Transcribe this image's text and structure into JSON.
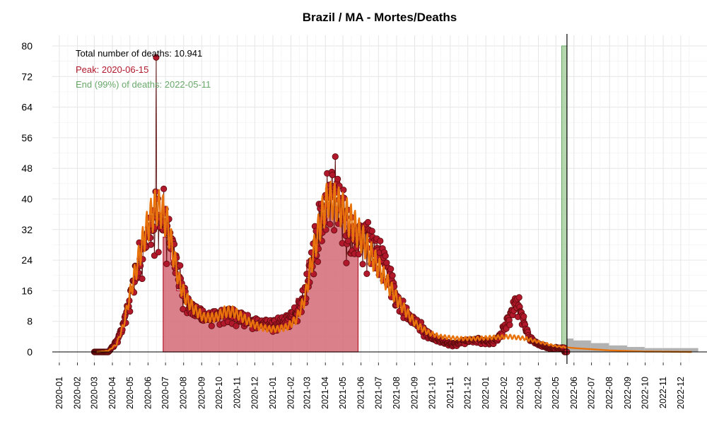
{
  "chart_data": {
    "type": "line",
    "title": "Brazil / MA - Mortes/Deaths",
    "annotations": {
      "total": "Total number of deaths: 10.941",
      "peak": "Peak: 2020-06-15",
      "end": "End (99%) of deaths: 2022-05-11"
    },
    "colors": {
      "points": "#b2182b",
      "points_stroke": "#5a0b0b",
      "area": "#d36a77",
      "smooth": "#e8730c",
      "peak_text": "#b2182b",
      "end_text": "#6aa86a",
      "end_band": "#9ccb94",
      "forecast": "#aaaaaa"
    },
    "y_ticks": [
      0,
      8,
      16,
      24,
      32,
      40,
      48,
      56,
      64,
      72,
      80
    ],
    "ylim": [
      0,
      80
    ],
    "x_ticks": [
      "2020-01",
      "2020-02",
      "2020-03",
      "2020-04",
      "2020-05",
      "2020-06",
      "2020-07",
      "2020-08",
      "2020-09",
      "2020-10",
      "2020-11",
      "2020-12",
      "2021-01",
      "2021-02",
      "2021-03",
      "2021-04",
      "2021-05",
      "2021-06",
      "2021-07",
      "2021-08",
      "2021-09",
      "2021-10",
      "2021-11",
      "2021-12",
      "2022-01",
      "2022-02",
      "2022-03",
      "2022-04",
      "2022-05",
      "2022-06",
      "2022-07",
      "2022-08",
      "2022-09",
      "2022-10",
      "2022-11",
      "2022-12"
    ],
    "xlim": [
      "2019-12-20",
      "2023-01-15"
    ],
    "observed_end": "2022-05-20",
    "end_band": [
      "2022-05-11",
      "2022-05-20"
    ],
    "peak": {
      "date": "2020-06-15",
      "value": 77
    },
    "smooth_trend": [
      [
        "2020-03-05",
        0
      ],
      [
        "2020-03-25",
        0.3
      ],
      [
        "2020-04-08",
        2
      ],
      [
        "2020-04-20",
        7
      ],
      [
        "2020-05-01",
        15
      ],
      [
        "2020-05-12",
        22
      ],
      [
        "2020-05-25",
        30
      ],
      [
        "2020-06-05",
        35
      ],
      [
        "2020-06-15",
        38
      ],
      [
        "2020-06-25",
        37
      ],
      [
        "2020-07-05",
        33
      ],
      [
        "2020-07-15",
        25
      ],
      [
        "2020-07-25",
        18
      ],
      [
        "2020-08-05",
        14
      ],
      [
        "2020-08-20",
        11
      ],
      [
        "2020-09-05",
        9
      ],
      [
        "2020-09-25",
        9
      ],
      [
        "2020-10-10",
        10.5
      ],
      [
        "2020-10-25",
        10.5
      ],
      [
        "2020-11-10",
        9
      ],
      [
        "2020-11-25",
        7.5
      ],
      [
        "2020-12-10",
        6.5
      ],
      [
        "2020-12-25",
        6
      ],
      [
        "2021-01-10",
        6
      ],
      [
        "2021-01-25",
        6.5
      ],
      [
        "2021-02-10",
        8.5
      ],
      [
        "2021-02-25",
        14
      ],
      [
        "2021-03-10",
        25
      ],
      [
        "2021-03-25",
        35
      ],
      [
        "2021-04-05",
        40
      ],
      [
        "2021-04-20",
        39
      ],
      [
        "2021-05-05",
        36
      ],
      [
        "2021-05-20",
        33
      ],
      [
        "2021-06-05",
        29
      ],
      [
        "2021-06-20",
        25
      ],
      [
        "2021-07-05",
        21
      ],
      [
        "2021-07-20",
        17
      ],
      [
        "2021-08-05",
        13
      ],
      [
        "2021-08-20",
        10
      ],
      [
        "2021-09-05",
        7
      ],
      [
        "2021-09-25",
        5
      ],
      [
        "2021-10-15",
        4
      ],
      [
        "2021-11-15",
        3.5
      ],
      [
        "2021-12-15",
        3.5
      ],
      [
        "2022-01-15",
        3.8
      ],
      [
        "2022-02-10",
        4
      ],
      [
        "2022-03-10",
        3.5
      ],
      [
        "2022-04-05",
        2.5
      ],
      [
        "2022-05-01",
        1.5
      ],
      [
        "2022-06-01",
        1
      ],
      [
        "2022-08-01",
        0.4
      ],
      [
        "2022-10-01",
        0.1
      ],
      [
        "2022-12-20",
        0
      ]
    ],
    "observed_trend": [
      [
        "2020-03-01",
        0
      ],
      [
        "2020-03-25",
        0
      ],
      [
        "2020-04-10",
        3
      ],
      [
        "2020-04-25",
        10
      ],
      [
        "2020-05-05",
        18
      ],
      [
        "2020-05-18",
        25
      ],
      [
        "2020-05-30",
        30
      ],
      [
        "2020-06-10",
        34
      ],
      [
        "2020-06-20",
        35
      ],
      [
        "2020-07-01",
        34
      ],
      [
        "2020-07-10",
        30
      ],
      [
        "2020-07-20",
        22
      ],
      [
        "2020-07-30",
        16
      ],
      [
        "2020-08-10",
        12
      ],
      [
        "2020-08-25",
        10
      ],
      [
        "2020-09-10",
        9
      ],
      [
        "2020-10-01",
        9.5
      ],
      [
        "2020-10-20",
        10
      ],
      [
        "2020-11-05",
        9
      ],
      [
        "2020-11-25",
        8
      ],
      [
        "2020-12-15",
        7.5
      ],
      [
        "2021-01-05",
        7
      ],
      [
        "2021-01-25",
        8
      ],
      [
        "2021-02-10",
        10
      ],
      [
        "2021-02-25",
        15
      ],
      [
        "2021-03-10",
        24
      ],
      [
        "2021-03-22",
        33
      ],
      [
        "2021-04-05",
        40
      ],
      [
        "2021-04-15",
        43
      ],
      [
        "2021-04-25",
        40
      ],
      [
        "2021-05-05",
        33
      ],
      [
        "2021-05-18",
        28
      ],
      [
        "2021-06-01",
        30
      ],
      [
        "2021-06-15",
        29
      ],
      [
        "2021-07-01",
        25
      ],
      [
        "2021-07-15",
        22
      ],
      [
        "2021-08-01",
        14
      ],
      [
        "2021-08-15",
        11
      ],
      [
        "2021-09-01",
        8
      ],
      [
        "2021-09-20",
        5
      ],
      [
        "2021-10-10",
        3
      ],
      [
        "2021-11-05",
        2
      ],
      [
        "2021-12-01",
        3
      ],
      [
        "2021-12-20",
        3
      ],
      [
        "2022-01-10",
        2.5
      ],
      [
        "2022-01-25",
        4
      ],
      [
        "2022-02-08",
        8
      ],
      [
        "2022-02-18",
        12
      ],
      [
        "2022-02-25",
        13
      ],
      [
        "2022-03-05",
        9
      ],
      [
        "2022-03-15",
        4
      ],
      [
        "2022-04-01",
        2
      ],
      [
        "2022-04-20",
        1
      ],
      [
        "2022-05-15",
        1
      ]
    ],
    "shaded_area": [
      [
        "2020-06-27",
        "2020-07-01",
        30
      ],
      [
        "2020-07-01",
        "2020-07-10",
        30
      ],
      [
        "2020-07-10",
        "2020-07-20",
        24
      ],
      [
        "2020-07-20",
        "2020-07-31",
        16
      ],
      [
        "2020-07-31",
        "2020-08-15",
        11
      ],
      [
        "2020-08-15",
        "2020-09-15",
        9.5
      ],
      [
        "2020-09-15",
        "2020-10-31",
        10
      ],
      [
        "2020-10-31",
        "2020-11-30",
        8
      ],
      [
        "2020-11-30",
        "2020-12-31",
        7
      ],
      [
        "2020-12-31",
        "2021-01-20",
        6
      ],
      [
        "2021-01-20",
        "2021-02-10",
        9
      ],
      [
        "2021-02-10",
        "2021-02-28",
        14
      ],
      [
        "2021-02-28",
        "2021-03-15",
        24
      ],
      [
        "2021-03-15",
        "2021-03-31",
        33
      ],
      [
        "2021-03-31",
        "2021-04-20",
        38
      ],
      [
        "2021-04-20",
        "2021-05-10",
        35
      ],
      [
        "2021-05-10",
        "2021-05-27",
        32
      ]
    ],
    "forecast_bars": [
      [
        "2022-05-20",
        "2022-05-31",
        3.5
      ],
      [
        "2022-05-31",
        "2022-06-30",
        3.0
      ],
      [
        "2022-06-30",
        "2022-07-31",
        2.3
      ],
      [
        "2022-07-31",
        "2022-08-31",
        1.7
      ],
      [
        "2022-08-31",
        "2022-09-30",
        1.3
      ],
      [
        "2022-09-30",
        "2022-10-31",
        1.0
      ],
      [
        "2022-10-31",
        "2022-12-31",
        1.0
      ]
    ]
  }
}
